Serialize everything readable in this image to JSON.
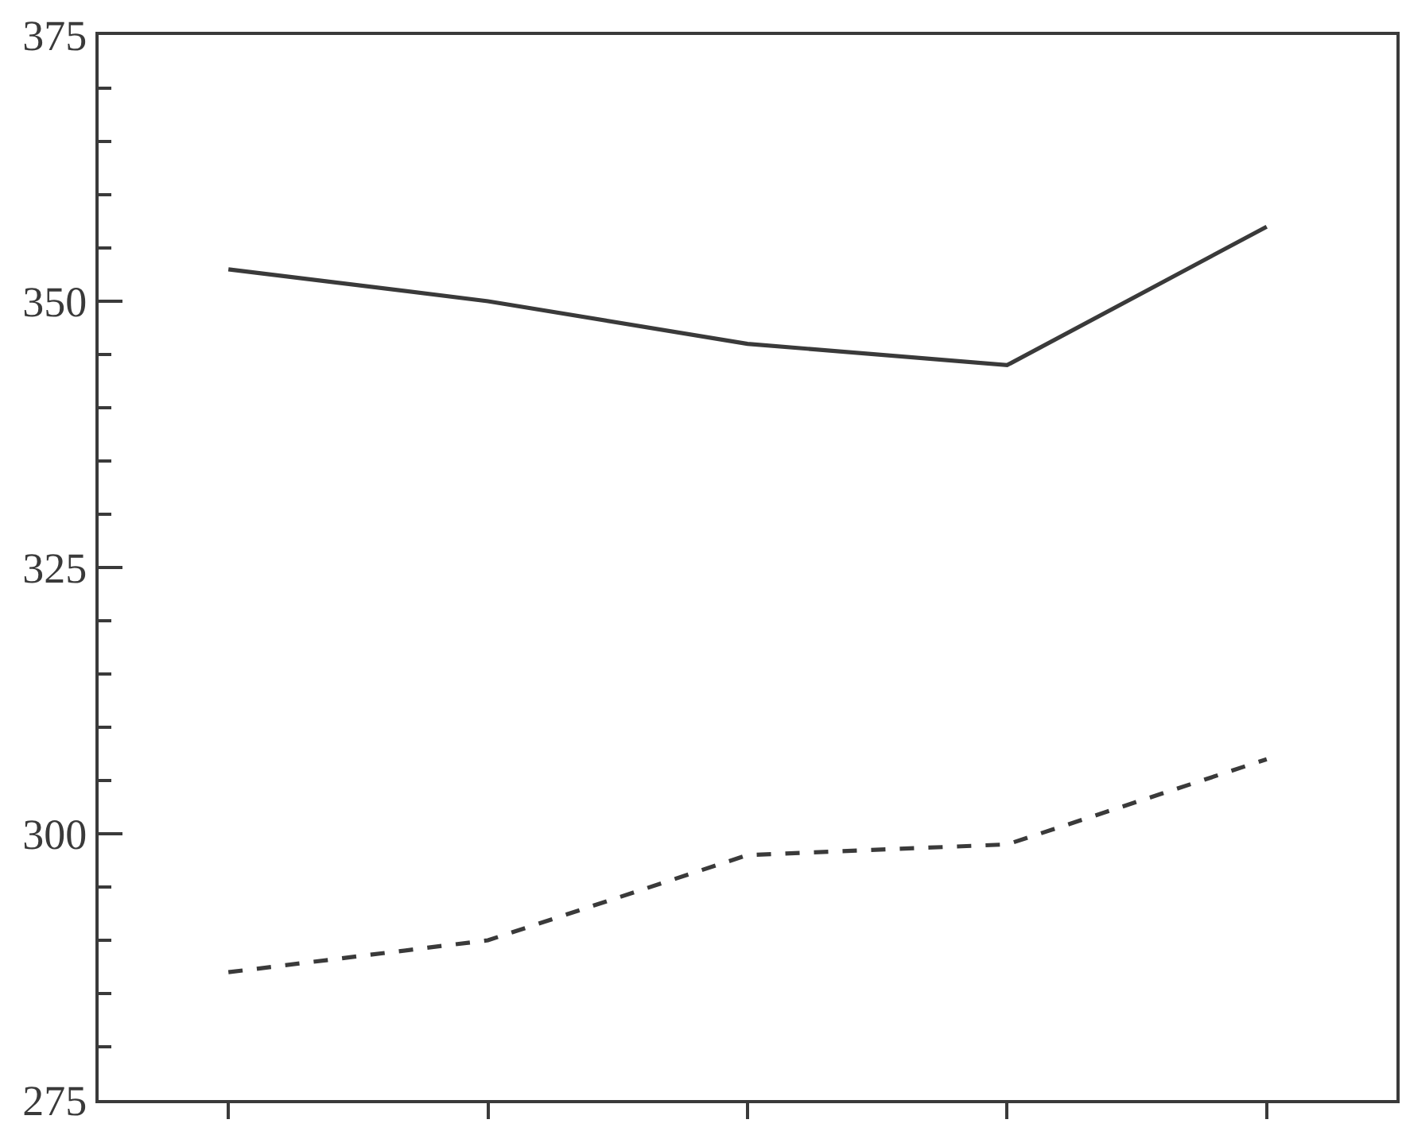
{
  "chart_data": {
    "type": "line",
    "categories": [
      null,
      null,
      null,
      null,
      null
    ],
    "series": [
      {
        "color": "#3a3a3a",
        "line_style": "solid",
        "values": [
          353,
          350,
          346,
          344,
          357
        ]
      },
      {
        "color": "#3a3a3a",
        "line_style": "dashed",
        "values": [
          287,
          290,
          298,
          299,
          307
        ]
      }
    ],
    "ylim": [
      275,
      375
    ],
    "yticks": [
      275,
      {
        "value": 280,
        "label": null
      },
      {
        "value": 285,
        "label": null
      },
      {
        "value": 290,
        "label": null
      },
      {
        "value": 295,
        "label": null
      },
      300,
      {
        "value": 305,
        "label": null
      },
      {
        "value": 310,
        "label": null
      },
      {
        "value": 315,
        "label": null
      },
      {
        "value": 320,
        "label": null
      },
      325,
      {
        "value": 330,
        "label": null
      },
      {
        "value": 335,
        "label": null
      },
      {
        "value": 340,
        "label": null
      },
      {
        "value": 345,
        "label": null
      },
      350,
      {
        "value": 355,
        "label": null
      },
      {
        "value": 360,
        "label": null
      },
      {
        "value": 365,
        "label": null
      },
      {
        "value": 370,
        "label": null
      },
      375
    ],
    "tick_labels": "y"
  }
}
